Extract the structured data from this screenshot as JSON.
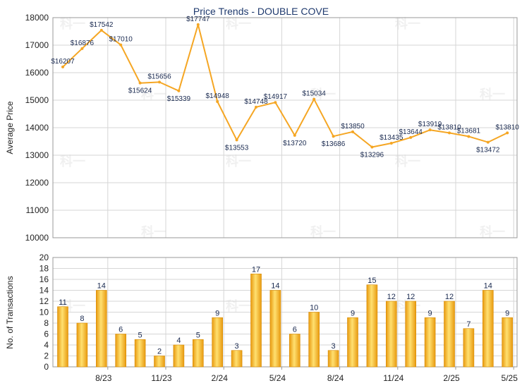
{
  "chart_data": [
    {
      "type": "line",
      "title": "Price Trends - DOUBLE COVE",
      "ylabel": "Average Price",
      "ylim": [
        10000,
        18000
      ],
      "yticks": [
        "10000",
        "11000",
        "12000",
        "13000",
        "14000",
        "15000",
        "16000",
        "17000",
        "18000"
      ],
      "grid": true,
      "color": "#f5a623",
      "values": [
        16207,
        16876,
        17542,
        17010,
        15624,
        15656,
        15339,
        17747,
        14948,
        13553,
        14748,
        14917,
        13720,
        15034,
        13686,
        13850,
        13296,
        13435,
        13644,
        13919,
        13810,
        13681,
        13472,
        13810
      ],
      "labels": [
        "$16207",
        "$16876",
        "$17542",
        "$17010",
        "$15624",
        "$15656",
        "$15339",
        "$17747",
        "$14948",
        "$13553",
        "$14748",
        "$14917",
        "$13720",
        "$15034",
        "$13686",
        "$13850",
        "$13296",
        "$13435",
        "$13644",
        "$13919",
        "$13810",
        "$13681",
        "$13472",
        "$13810"
      ]
    },
    {
      "type": "bar",
      "ylabel": "No. of Transactions",
      "ylim": [
        0,
        20
      ],
      "yticks": [
        "0",
        "2",
        "4",
        "6",
        "8",
        "10",
        "12",
        "14",
        "16",
        "18",
        "20"
      ],
      "grid": true,
      "color": "#f5b324",
      "values": [
        11,
        8,
        14,
        6,
        5,
        2,
        4,
        5,
        9,
        3,
        17,
        14,
        6,
        10,
        3,
        9,
        15,
        12,
        12,
        9,
        12,
        7,
        14,
        9
      ],
      "xticks": [
        {
          "index": 2,
          "label": "8/23"
        },
        {
          "index": 5,
          "label": "11/23"
        },
        {
          "index": 8,
          "label": "2/24"
        },
        {
          "index": 11,
          "label": "5/24"
        },
        {
          "index": 14,
          "label": "8/24"
        },
        {
          "index": 17,
          "label": "11/24"
        },
        {
          "index": 20,
          "label": "2/25"
        },
        {
          "index": 23,
          "label": "5/25"
        }
      ]
    }
  ],
  "watermark": "科一"
}
